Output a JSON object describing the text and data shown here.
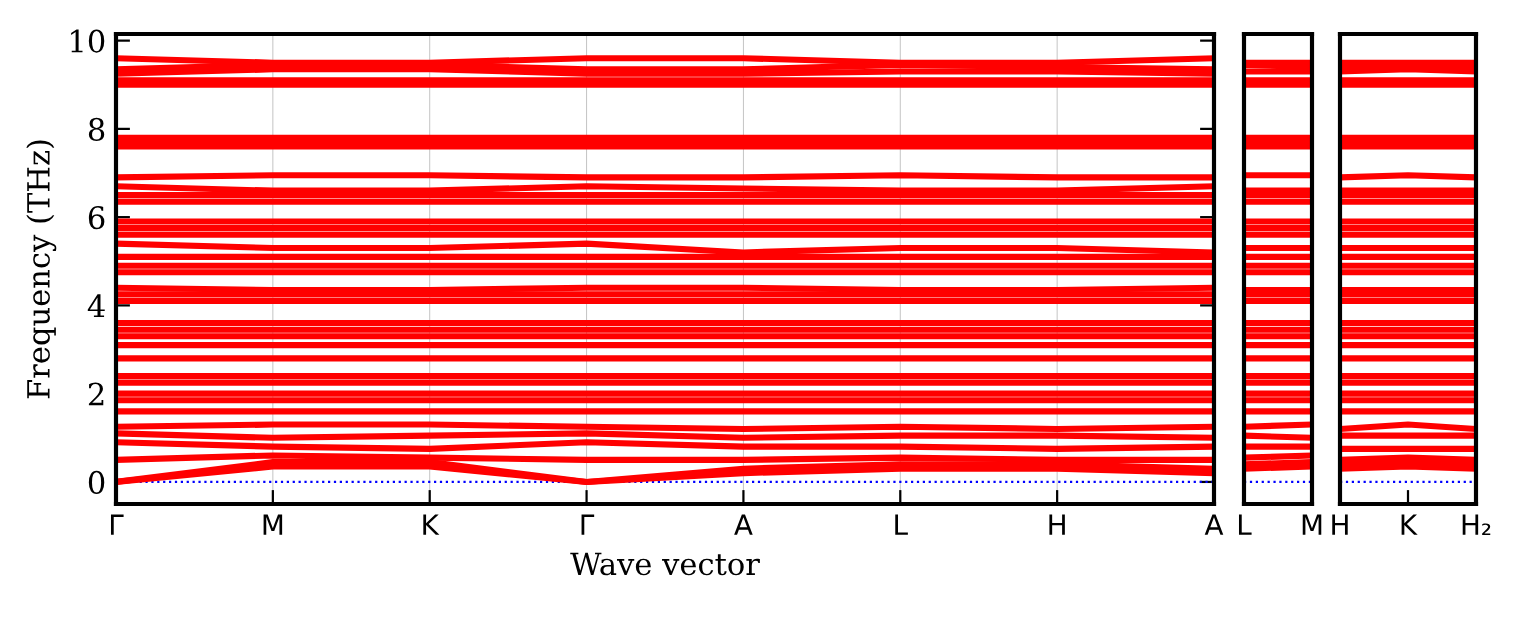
{
  "chart_data": [
    {
      "type": "line",
      "ylabel": "Frequency (THz)",
      "xlabel": "Wave vector",
      "categories": [
        "Γ",
        "M",
        "K",
        "Γ",
        "A",
        "L",
        "H",
        "A"
      ],
      "ylim": [
        -0.5,
        10.15
      ],
      "yticks": [
        0,
        2,
        4,
        6,
        8,
        10
      ],
      "grid": "x",
      "line_style": "solid",
      "marker": "none",
      "ref_lines": [
        {
          "axis": "y",
          "value": 0,
          "color": "#0000ff",
          "line_style": "dotted"
        }
      ],
      "series": [
        {
          "color": "#ff0000",
          "values": [
            9.6,
            9.5,
            9.5,
            9.6,
            9.6,
            9.5,
            9.5,
            9.6
          ]
        },
        {
          "color": "#ff0000",
          "values": [
            9.35,
            9.45,
            9.45,
            9.35,
            9.35,
            9.45,
            9.4,
            9.35
          ]
        },
        {
          "color": "#ff0000",
          "values": [
            9.25,
            9.35,
            9.35,
            9.25,
            9.25,
            9.3,
            9.3,
            9.25
          ]
        },
        {
          "color": "#ff0000",
          "values": [
            9.1,
            9.1,
            9.1,
            9.1,
            9.1,
            9.1,
            9.1,
            9.1
          ]
        },
        {
          "color": "#ff0000",
          "values": [
            9.0,
            9.0,
            9.0,
            9.0,
            9.0,
            9.0,
            9.0,
            9.0
          ]
        },
        {
          "color": "#ff0000",
          "values": [
            7.8,
            7.8,
            7.8,
            7.8,
            7.8,
            7.8,
            7.8,
            7.8
          ]
        },
        {
          "color": "#ff0000",
          "values": [
            7.7,
            7.7,
            7.7,
            7.7,
            7.7,
            7.7,
            7.7,
            7.7
          ]
        },
        {
          "color": "#ff0000",
          "values": [
            7.6,
            7.6,
            7.6,
            7.6,
            7.6,
            7.6,
            7.6,
            7.6
          ]
        },
        {
          "color": "#ff0000",
          "values": [
            6.9,
            6.95,
            6.95,
            6.9,
            6.9,
            6.95,
            6.9,
            6.9
          ]
        },
        {
          "color": "#ff0000",
          "values": [
            6.7,
            6.6,
            6.6,
            6.7,
            6.65,
            6.6,
            6.6,
            6.7
          ]
        },
        {
          "color": "#ff0000",
          "values": [
            6.5,
            6.5,
            6.5,
            6.5,
            6.5,
            6.5,
            6.5,
            6.5
          ]
        },
        {
          "color": "#ff0000",
          "values": [
            6.35,
            6.35,
            6.35,
            6.35,
            6.35,
            6.35,
            6.35,
            6.35
          ]
        },
        {
          "color": "#ff0000",
          "values": [
            5.9,
            5.9,
            5.9,
            5.9,
            5.9,
            5.9,
            5.9,
            5.9
          ]
        },
        {
          "color": "#ff0000",
          "values": [
            5.75,
            5.75,
            5.75,
            5.75,
            5.75,
            5.75,
            5.75,
            5.75
          ]
        },
        {
          "color": "#ff0000",
          "values": [
            5.6,
            5.6,
            5.6,
            5.6,
            5.6,
            5.6,
            5.6,
            5.6
          ]
        },
        {
          "color": "#ff0000",
          "values": [
            5.4,
            5.3,
            5.3,
            5.4,
            5.2,
            5.3,
            5.3,
            5.2
          ]
        },
        {
          "color": "#ff0000",
          "values": [
            5.1,
            5.1,
            5.1,
            5.1,
            5.1,
            5.1,
            5.1,
            5.1
          ]
        },
        {
          "color": "#ff0000",
          "values": [
            4.9,
            4.9,
            4.9,
            4.9,
            4.9,
            4.9,
            4.9,
            4.9
          ]
        },
        {
          "color": "#ff0000",
          "values": [
            4.75,
            4.75,
            4.75,
            4.75,
            4.75,
            4.75,
            4.75,
            4.75
          ]
        },
        {
          "color": "#ff0000",
          "values": [
            4.4,
            4.35,
            4.35,
            4.4,
            4.4,
            4.35,
            4.35,
            4.4
          ]
        },
        {
          "color": "#ff0000",
          "values": [
            4.25,
            4.25,
            4.25,
            4.25,
            4.25,
            4.25,
            4.25,
            4.25
          ]
        },
        {
          "color": "#ff0000",
          "values": [
            4.1,
            4.1,
            4.1,
            4.1,
            4.1,
            4.1,
            4.1,
            4.1
          ]
        },
        {
          "color": "#ff0000",
          "values": [
            3.6,
            3.6,
            3.6,
            3.6,
            3.6,
            3.6,
            3.6,
            3.6
          ]
        },
        {
          "color": "#ff0000",
          "values": [
            3.45,
            3.45,
            3.45,
            3.45,
            3.45,
            3.45,
            3.45,
            3.45
          ]
        },
        {
          "color": "#ff0000",
          "values": [
            3.3,
            3.3,
            3.3,
            3.3,
            3.3,
            3.3,
            3.3,
            3.3
          ]
        },
        {
          "color": "#ff0000",
          "values": [
            3.1,
            3.1,
            3.1,
            3.1,
            3.1,
            3.1,
            3.1,
            3.1
          ]
        },
        {
          "color": "#ff0000",
          "values": [
            2.8,
            2.8,
            2.8,
            2.8,
            2.8,
            2.8,
            2.8,
            2.8
          ]
        },
        {
          "color": "#ff0000",
          "values": [
            2.4,
            2.4,
            2.4,
            2.4,
            2.4,
            2.4,
            2.4,
            2.4
          ]
        },
        {
          "color": "#ff0000",
          "values": [
            2.25,
            2.25,
            2.25,
            2.25,
            2.25,
            2.25,
            2.25,
            2.25
          ]
        },
        {
          "color": "#ff0000",
          "values": [
            2.0,
            2.0,
            2.0,
            2.0,
            2.0,
            2.0,
            2.0,
            2.0
          ]
        },
        {
          "color": "#ff0000",
          "values": [
            1.85,
            1.85,
            1.85,
            1.85,
            1.85,
            1.85,
            1.85,
            1.85
          ]
        },
        {
          "color": "#ff0000",
          "values": [
            1.6,
            1.6,
            1.6,
            1.6,
            1.6,
            1.6,
            1.6,
            1.6
          ]
        },
        {
          "color": "#ff0000",
          "values": [
            1.25,
            1.3,
            1.3,
            1.25,
            1.2,
            1.25,
            1.2,
            1.25
          ]
        },
        {
          "color": "#ff0000",
          "values": [
            1.1,
            1.0,
            1.05,
            1.1,
            1.0,
            1.05,
            1.05,
            1.0
          ]
        },
        {
          "color": "#ff0000",
          "values": [
            0.9,
            0.8,
            0.75,
            0.9,
            0.8,
            0.8,
            0.75,
            0.8
          ]
        },
        {
          "color": "#ff0000",
          "values": [
            0.5,
            0.6,
            0.55,
            0.5,
            0.5,
            0.55,
            0.5,
            0.5
          ]
        },
        {
          "color": "#ff0000",
          "values": [
            0,
            0.45,
            0.45,
            0,
            0.3,
            0.4,
            0.4,
            0.3
          ]
        },
        {
          "color": "#ff0000",
          "values": [
            0,
            0.35,
            0.35,
            0,
            0.2,
            0.3,
            0.3,
            0.2
          ]
        }
      ]
    },
    {
      "type": "line",
      "categories": [
        "L",
        "M"
      ],
      "ylim": [
        -0.5,
        10.15
      ],
      "tick_labels": "x",
      "grid": "x",
      "line_style": "solid",
      "marker": "none",
      "ref_lines": [
        {
          "axis": "y",
          "value": 0,
          "color": "#0000ff",
          "line_style": "dotted"
        }
      ],
      "series": [
        {
          "color": "#ff0000",
          "values": [
            9.5,
            9.5
          ]
        },
        {
          "color": "#ff0000",
          "values": [
            9.45,
            9.4
          ]
        },
        {
          "color": "#ff0000",
          "values": [
            9.3,
            9.3
          ]
        },
        {
          "color": "#ff0000",
          "values": [
            9.1,
            9.1
          ]
        },
        {
          "color": "#ff0000",
          "values": [
            9.0,
            9.0
          ]
        },
        {
          "color": "#ff0000",
          "values": [
            7.8,
            7.8
          ]
        },
        {
          "color": "#ff0000",
          "values": [
            7.7,
            7.7
          ]
        },
        {
          "color": "#ff0000",
          "values": [
            7.6,
            7.6
          ]
        },
        {
          "color": "#ff0000",
          "values": [
            6.95,
            6.95
          ]
        },
        {
          "color": "#ff0000",
          "values": [
            6.6,
            6.6
          ]
        },
        {
          "color": "#ff0000",
          "values": [
            6.5,
            6.5
          ]
        },
        {
          "color": "#ff0000",
          "values": [
            6.35,
            6.35
          ]
        },
        {
          "color": "#ff0000",
          "values": [
            5.9,
            5.9
          ]
        },
        {
          "color": "#ff0000",
          "values": [
            5.75,
            5.75
          ]
        },
        {
          "color": "#ff0000",
          "values": [
            5.6,
            5.6
          ]
        },
        {
          "color": "#ff0000",
          "values": [
            5.3,
            5.3
          ]
        },
        {
          "color": "#ff0000",
          "values": [
            5.1,
            5.1
          ]
        },
        {
          "color": "#ff0000",
          "values": [
            4.9,
            4.9
          ]
        },
        {
          "color": "#ff0000",
          "values": [
            4.75,
            4.75
          ]
        },
        {
          "color": "#ff0000",
          "values": [
            4.35,
            4.35
          ]
        },
        {
          "color": "#ff0000",
          "values": [
            4.25,
            4.25
          ]
        },
        {
          "color": "#ff0000",
          "values": [
            4.1,
            4.1
          ]
        },
        {
          "color": "#ff0000",
          "values": [
            3.6,
            3.6
          ]
        },
        {
          "color": "#ff0000",
          "values": [
            3.45,
            3.45
          ]
        },
        {
          "color": "#ff0000",
          "values": [
            3.3,
            3.3
          ]
        },
        {
          "color": "#ff0000",
          "values": [
            3.1,
            3.1
          ]
        },
        {
          "color": "#ff0000",
          "values": [
            2.8,
            2.8
          ]
        },
        {
          "color": "#ff0000",
          "values": [
            2.4,
            2.4
          ]
        },
        {
          "color": "#ff0000",
          "values": [
            2.25,
            2.25
          ]
        },
        {
          "color": "#ff0000",
          "values": [
            2.0,
            2.0
          ]
        },
        {
          "color": "#ff0000",
          "values": [
            1.85,
            1.85
          ]
        },
        {
          "color": "#ff0000",
          "values": [
            1.6,
            1.6
          ]
        },
        {
          "color": "#ff0000",
          "values": [
            1.25,
            1.3
          ]
        },
        {
          "color": "#ff0000",
          "values": [
            1.05,
            1.0
          ]
        },
        {
          "color": "#ff0000",
          "values": [
            0.8,
            0.8
          ]
        },
        {
          "color": "#ff0000",
          "values": [
            0.55,
            0.6
          ]
        },
        {
          "color": "#ff0000",
          "values": [
            0.4,
            0.45
          ]
        },
        {
          "color": "#ff0000",
          "values": [
            0.3,
            0.35
          ]
        }
      ]
    },
    {
      "type": "line",
      "categories": [
        "H",
        "K",
        "H₂"
      ],
      "ylim": [
        -0.5,
        10.15
      ],
      "tick_labels": "x",
      "grid": false,
      "line_style": "solid",
      "marker": "none",
      "ref_lines": [
        {
          "axis": "y",
          "value": 0,
          "color": "#0000ff",
          "line_style": "dotted"
        }
      ],
      "series": [
        {
          "color": "#ff0000",
          "values": [
            9.5,
            9.5,
            9.5
          ]
        },
        {
          "color": "#ff0000",
          "values": [
            9.4,
            9.45,
            9.4
          ]
        },
        {
          "color": "#ff0000",
          "values": [
            9.3,
            9.35,
            9.3
          ]
        },
        {
          "color": "#ff0000",
          "values": [
            9.1,
            9.1,
            9.1
          ]
        },
        {
          "color": "#ff0000",
          "values": [
            9.0,
            9.0,
            9.0
          ]
        },
        {
          "color": "#ff0000",
          "values": [
            7.8,
            7.8,
            7.8
          ]
        },
        {
          "color": "#ff0000",
          "values": [
            7.7,
            7.7,
            7.7
          ]
        },
        {
          "color": "#ff0000",
          "values": [
            7.6,
            7.6,
            7.6
          ]
        },
        {
          "color": "#ff0000",
          "values": [
            6.9,
            6.95,
            6.9
          ]
        },
        {
          "color": "#ff0000",
          "values": [
            6.6,
            6.6,
            6.6
          ]
        },
        {
          "color": "#ff0000",
          "values": [
            6.5,
            6.5,
            6.5
          ]
        },
        {
          "color": "#ff0000",
          "values": [
            6.35,
            6.35,
            6.35
          ]
        },
        {
          "color": "#ff0000",
          "values": [
            5.9,
            5.9,
            5.9
          ]
        },
        {
          "color": "#ff0000",
          "values": [
            5.75,
            5.75,
            5.75
          ]
        },
        {
          "color": "#ff0000",
          "values": [
            5.6,
            5.6,
            5.6
          ]
        },
        {
          "color": "#ff0000",
          "values": [
            5.3,
            5.3,
            5.3
          ]
        },
        {
          "color": "#ff0000",
          "values": [
            5.1,
            5.1,
            5.1
          ]
        },
        {
          "color": "#ff0000",
          "values": [
            4.9,
            4.9,
            4.9
          ]
        },
        {
          "color": "#ff0000",
          "values": [
            4.75,
            4.75,
            4.75
          ]
        },
        {
          "color": "#ff0000",
          "values": [
            4.35,
            4.35,
            4.35
          ]
        },
        {
          "color": "#ff0000",
          "values": [
            4.25,
            4.25,
            4.25
          ]
        },
        {
          "color": "#ff0000",
          "values": [
            4.1,
            4.1,
            4.1
          ]
        },
        {
          "color": "#ff0000",
          "values": [
            3.6,
            3.6,
            3.6
          ]
        },
        {
          "color": "#ff0000",
          "values": [
            3.45,
            3.45,
            3.45
          ]
        },
        {
          "color": "#ff0000",
          "values": [
            3.3,
            3.3,
            3.3
          ]
        },
        {
          "color": "#ff0000",
          "values": [
            3.1,
            3.1,
            3.1
          ]
        },
        {
          "color": "#ff0000",
          "values": [
            2.8,
            2.8,
            2.8
          ]
        },
        {
          "color": "#ff0000",
          "values": [
            2.4,
            2.4,
            2.4
          ]
        },
        {
          "color": "#ff0000",
          "values": [
            2.25,
            2.25,
            2.25
          ]
        },
        {
          "color": "#ff0000",
          "values": [
            2.0,
            2.0,
            2.0
          ]
        },
        {
          "color": "#ff0000",
          "values": [
            1.85,
            1.85,
            1.85
          ]
        },
        {
          "color": "#ff0000",
          "values": [
            1.6,
            1.6,
            1.6
          ]
        },
        {
          "color": "#ff0000",
          "values": [
            1.2,
            1.3,
            1.2
          ]
        },
        {
          "color": "#ff0000",
          "values": [
            1.05,
            1.05,
            1.05
          ]
        },
        {
          "color": "#ff0000",
          "values": [
            0.75,
            0.75,
            0.75
          ]
        },
        {
          "color": "#ff0000",
          "values": [
            0.5,
            0.55,
            0.5
          ]
        },
        {
          "color": "#ff0000",
          "values": [
            0.4,
            0.45,
            0.4
          ]
        },
        {
          "color": "#ff0000",
          "values": [
            0.3,
            0.35,
            0.3
          ]
        }
      ]
    }
  ]
}
